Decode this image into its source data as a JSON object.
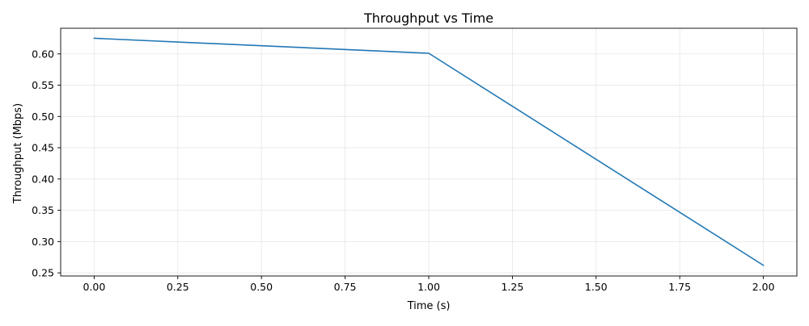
{
  "chart_data": {
    "type": "line",
    "title": "Throughput vs Time",
    "xlabel": "Time (s)",
    "ylabel": "Throughput (Mbps)",
    "xlim": [
      -0.1,
      2.1
    ],
    "ylim": [
      0.245,
      0.641
    ],
    "x_ticks": [
      0.0,
      0.25,
      0.5,
      0.75,
      1.0,
      1.25,
      1.5,
      1.75,
      2.0
    ],
    "x_tick_labels": [
      "0.00",
      "0.25",
      "0.50",
      "0.75",
      "1.00",
      "1.25",
      "1.50",
      "1.75",
      "2.00"
    ],
    "y_ticks": [
      0.25,
      0.3,
      0.35,
      0.4,
      0.45,
      0.5,
      0.55,
      0.6
    ],
    "y_tick_labels": [
      "0.25",
      "0.30",
      "0.35",
      "0.40",
      "0.45",
      "0.50",
      "0.55",
      "0.60"
    ],
    "grid": true,
    "series": [
      {
        "x": [
          0.0,
          1.0,
          2.0
        ],
        "y": [
          0.625,
          0.601,
          0.262
        ],
        "color": "#1f77b4"
      }
    ]
  }
}
